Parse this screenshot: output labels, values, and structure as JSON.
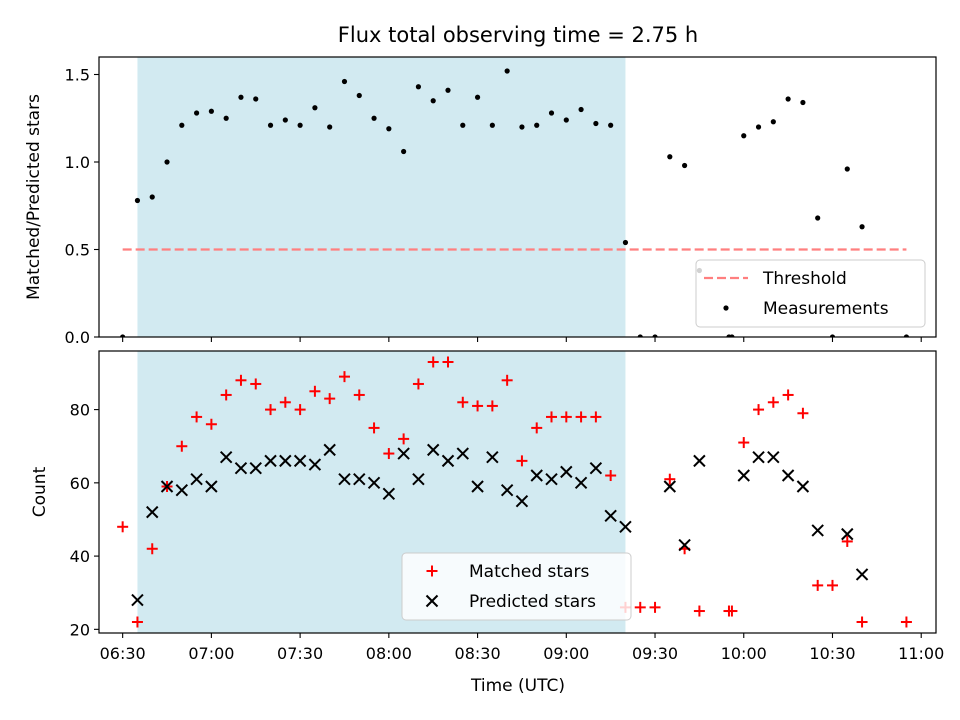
{
  "chart_data": {
    "title": "Flux total observing time = 2.75 h",
    "xlabel": "Time (UTC)",
    "x_ticks": [
      "06:30",
      "07:00",
      "07:30",
      "08:00",
      "08:30",
      "09:00",
      "09:30",
      "10:00",
      "10:30",
      "11:00"
    ],
    "x_range": [
      "06:22",
      "11:05"
    ],
    "shaded_interval": [
      "06:35",
      "09:20"
    ],
    "shade_color": "#add8e6",
    "panels": [
      {
        "type": "scatter",
        "ylabel": "Matched/Predicted stars",
        "ylim": [
          0.0,
          1.6
        ],
        "y_ticks": [
          0.0,
          0.5,
          1.0,
          1.5
        ],
        "threshold": {
          "name": "Threshold",
          "value": 0.5,
          "x_start": "06:30",
          "x_end": "10:55",
          "color": "#ff7f7f",
          "style": "dashed"
        },
        "series": [
          {
            "name": "Measurements",
            "color": "#000000",
            "marker": "dot",
            "points": [
              [
                "06:30",
                0.0
              ],
              [
                "06:35",
                0.78
              ],
              [
                "06:40",
                0.8
              ],
              [
                "06:45",
                1.0
              ],
              [
                "06:50",
                1.21
              ],
              [
                "06:55",
                1.28
              ],
              [
                "07:00",
                1.29
              ],
              [
                "07:05",
                1.25
              ],
              [
                "07:10",
                1.37
              ],
              [
                "07:15",
                1.36
              ],
              [
                "07:20",
                1.21
              ],
              [
                "07:25",
                1.24
              ],
              [
                "07:30",
                1.21
              ],
              [
                "07:35",
                1.31
              ],
              [
                "07:40",
                1.2
              ],
              [
                "07:45",
                1.46
              ],
              [
                "07:50",
                1.38
              ],
              [
                "07:55",
                1.25
              ],
              [
                "08:00",
                1.19
              ],
              [
                "08:05",
                1.06
              ],
              [
                "08:10",
                1.43
              ],
              [
                "08:15",
                1.35
              ],
              [
                "08:20",
                1.41
              ],
              [
                "08:25",
                1.21
              ],
              [
                "08:30",
                1.37
              ],
              [
                "08:35",
                1.21
              ],
              [
                "08:40",
                1.52
              ],
              [
                "08:45",
                1.2
              ],
              [
                "08:50",
                1.21
              ],
              [
                "08:55",
                1.28
              ],
              [
                "09:00",
                1.24
              ],
              [
                "09:05",
                1.3
              ],
              [
                "09:10",
                1.22
              ],
              [
                "09:15",
                1.21
              ],
              [
                "09:20",
                0.54
              ],
              [
                "09:25",
                0.0
              ],
              [
                "09:30",
                0.0
              ],
              [
                "09:35",
                1.03
              ],
              [
                "09:40",
                0.98
              ],
              [
                "09:45",
                0.38
              ],
              [
                "09:55",
                0.0
              ],
              [
                "09:56",
                0.0
              ],
              [
                "10:00",
                1.15
              ],
              [
                "10:05",
                1.2
              ],
              [
                "10:10",
                1.23
              ],
              [
                "10:15",
                1.36
              ],
              [
                "10:20",
                1.34
              ],
              [
                "10:25",
                0.68
              ],
              [
                "10:30",
                0.0
              ],
              [
                "10:35",
                0.96
              ],
              [
                "10:40",
                0.63
              ],
              [
                "10:55",
                0.0
              ]
            ]
          }
        ],
        "legend": {
          "placement": "lower-right",
          "entries": [
            "Threshold",
            "Measurements"
          ]
        }
      },
      {
        "type": "scatter",
        "ylabel": "Count",
        "ylim": [
          19,
          96
        ],
        "y_ticks": [
          20,
          40,
          60,
          80
        ],
        "series": [
          {
            "name": "Matched stars",
            "color": "#ff0000",
            "marker": "plus",
            "points": [
              [
                "06:30",
                48
              ],
              [
                "06:35",
                22
              ],
              [
                "06:40",
                42
              ],
              [
                "06:45",
                59
              ],
              [
                "06:50",
                70
              ],
              [
                "06:55",
                78
              ],
              [
                "07:00",
                76
              ],
              [
                "07:05",
                84
              ],
              [
                "07:10",
                88
              ],
              [
                "07:15",
                87
              ],
              [
                "07:20",
                80
              ],
              [
                "07:25",
                82
              ],
              [
                "07:30",
                80
              ],
              [
                "07:35",
                85
              ],
              [
                "07:40",
                83
              ],
              [
                "07:45",
                89
              ],
              [
                "07:50",
                84
              ],
              [
                "07:55",
                75
              ],
              [
                "08:00",
                68
              ],
              [
                "08:05",
                72
              ],
              [
                "08:10",
                87
              ],
              [
                "08:15",
                93
              ],
              [
                "08:20",
                93
              ],
              [
                "08:25",
                82
              ],
              [
                "08:30",
                81
              ],
              [
                "08:35",
                81
              ],
              [
                "08:40",
                88
              ],
              [
                "08:45",
                66
              ],
              [
                "08:50",
                75
              ],
              [
                "08:55",
                78
              ],
              [
                "09:00",
                78
              ],
              [
                "09:05",
                78
              ],
              [
                "09:10",
                78
              ],
              [
                "09:15",
                62
              ],
              [
                "09:20",
                26
              ],
              [
                "09:25",
                26
              ],
              [
                "09:30",
                26
              ],
              [
                "09:35",
                61
              ],
              [
                "09:40",
                42
              ],
              [
                "09:45",
                25
              ],
              [
                "09:55",
                25
              ],
              [
                "09:56",
                25
              ],
              [
                "10:00",
                71
              ],
              [
                "10:05",
                80
              ],
              [
                "10:10",
                82
              ],
              [
                "10:15",
                84
              ],
              [
                "10:20",
                79
              ],
              [
                "10:25",
                32
              ],
              [
                "10:30",
                32
              ],
              [
                "10:35",
                44
              ],
              [
                "10:40",
                22
              ],
              [
                "10:55",
                22
              ]
            ]
          },
          {
            "name": "Predicted stars",
            "color": "#000000",
            "marker": "x",
            "points": [
              [
                "06:35",
                28
              ],
              [
                "06:40",
                52
              ],
              [
                "06:45",
                59
              ],
              [
                "06:50",
                58
              ],
              [
                "06:55",
                61
              ],
              [
                "07:00",
                59
              ],
              [
                "07:05",
                67
              ],
              [
                "07:10",
                64
              ],
              [
                "07:15",
                64
              ],
              [
                "07:20",
                66
              ],
              [
                "07:25",
                66
              ],
              [
                "07:30",
                66
              ],
              [
                "07:35",
                65
              ],
              [
                "07:40",
                69
              ],
              [
                "07:45",
                61
              ],
              [
                "07:50",
                61
              ],
              [
                "07:55",
                60
              ],
              [
                "08:00",
                57
              ],
              [
                "08:05",
                68
              ],
              [
                "08:10",
                61
              ],
              [
                "08:15",
                69
              ],
              [
                "08:20",
                66
              ],
              [
                "08:25",
                68
              ],
              [
                "08:30",
                59
              ],
              [
                "08:35",
                67
              ],
              [
                "08:40",
                58
              ],
              [
                "08:45",
                55
              ],
              [
                "08:50",
                62
              ],
              [
                "08:55",
                61
              ],
              [
                "09:00",
                63
              ],
              [
                "09:05",
                60
              ],
              [
                "09:10",
                64
              ],
              [
                "09:15",
                51
              ],
              [
                "09:20",
                48
              ],
              [
                "09:35",
                59
              ],
              [
                "09:40",
                43
              ],
              [
                "09:45",
                66
              ],
              [
                "10:00",
                62
              ],
              [
                "10:05",
                67
              ],
              [
                "10:10",
                67
              ],
              [
                "10:15",
                62
              ],
              [
                "10:20",
                59
              ],
              [
                "10:25",
                47
              ],
              [
                "10:35",
                46
              ],
              [
                "10:40",
                35
              ]
            ]
          }
        ],
        "legend": {
          "placement": "lower-center",
          "entries": [
            "Matched stars",
            "Predicted stars"
          ]
        }
      }
    ]
  }
}
